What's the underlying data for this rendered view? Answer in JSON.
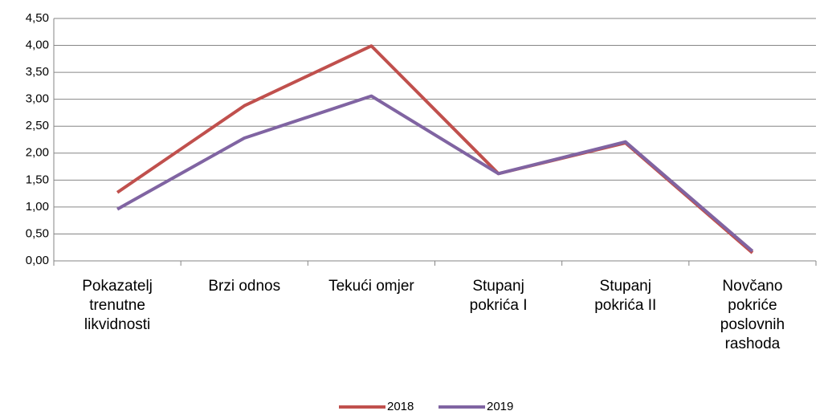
{
  "chart_data": {
    "type": "line",
    "categories": [
      "Pokazatelj trenutne likvidnosti",
      "Brzi odnos",
      "Tekući omjer",
      "Stupanj pokrića I",
      "Stupanj pokrića II",
      "Novčano pokriće poslovnih rashoda"
    ],
    "series": [
      {
        "name": "2018",
        "color": "#c0504d",
        "values": [
          1.27,
          2.88,
          3.99,
          1.62,
          2.19,
          0.15
        ]
      },
      {
        "name": "2019",
        "color": "#8064a2",
        "values": [
          0.96,
          2.28,
          3.06,
          1.62,
          2.21,
          0.18
        ]
      }
    ],
    "ylim": [
      0,
      4.5
    ],
    "yticks": [
      {
        "value": 0,
        "label": "0,00"
      },
      {
        "value": 0.5,
        "label": "0,50"
      },
      {
        "value": 1,
        "label": "1,00"
      },
      {
        "value": 1.5,
        "label": "1,50"
      },
      {
        "value": 2,
        "label": "2,00"
      },
      {
        "value": 2.5,
        "label": "2,50"
      },
      {
        "value": 3,
        "label": "3,00"
      },
      {
        "value": 3.5,
        "label": "3,50"
      },
      {
        "value": 4,
        "label": "4,00"
      },
      {
        "value": 4.5,
        "label": "4,50"
      }
    ],
    "grid": true,
    "legend": "bottom"
  }
}
